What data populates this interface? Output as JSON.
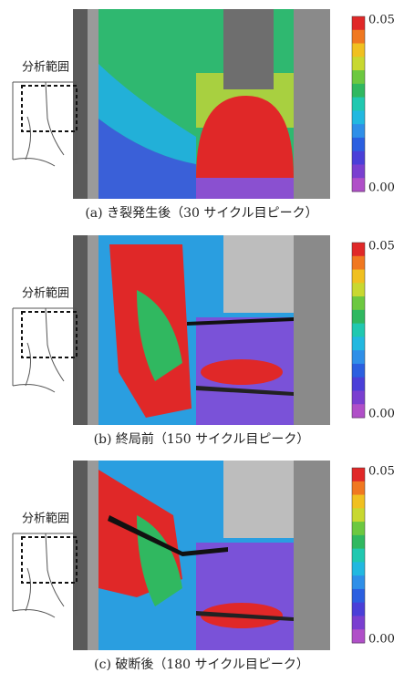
{
  "panels": [
    {
      "caption": "(a) き裂発生後（30 サイクル目ピーク）",
      "region_label": "分析範囲",
      "colorbar": {
        "max_label": "0.05",
        "min_label": "0.00"
      }
    },
    {
      "caption": "(b) 終局前（150 サイクル目ピーク）",
      "region_label": "分析範囲",
      "colorbar": {
        "max_label": "0.05",
        "min_label": "0.00"
      }
    },
    {
      "caption": "(c) 破断後（180 サイクル目ピーク）",
      "region_label": "分析範囲",
      "colorbar": {
        "max_label": "0.05",
        "min_label": "0.00"
      }
    }
  ]
}
